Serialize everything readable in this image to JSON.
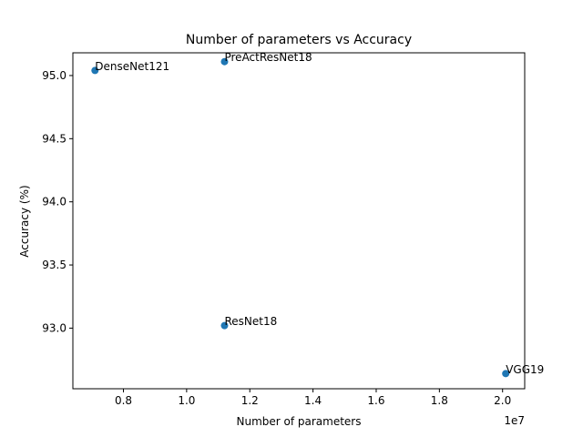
{
  "chart_data": {
    "type": "scatter",
    "title": "Number of parameters vs Accuracy",
    "xlabel": "Number of parameters",
    "ylabel": "Accuracy (%)",
    "x_offset_text": "1e7",
    "xlim": [
      0.64,
      2.07
    ],
    "ylim": [
      92.52,
      95.18
    ],
    "x_ticks": [
      0.8,
      1.0,
      1.2,
      1.4,
      1.6,
      1.8,
      2.0
    ],
    "x_tick_labels": [
      "0.8",
      "1.0",
      "1.2",
      "1.4",
      "1.6",
      "1.8",
      "2.0"
    ],
    "y_ticks": [
      93.0,
      93.5,
      94.0,
      94.5,
      95.0
    ],
    "y_tick_labels": [
      "93.0",
      "93.5",
      "94.0",
      "94.5",
      "95.0"
    ],
    "grid": false,
    "point_color": "#1f77b4",
    "points": [
      {
        "label": "DenseNet121",
        "x": 0.71,
        "y": 95.04
      },
      {
        "label": "PreActResNet18",
        "x": 1.12,
        "y": 95.11
      },
      {
        "label": "ResNet18",
        "x": 1.12,
        "y": 93.02
      },
      {
        "label": "VGG19",
        "x": 2.01,
        "y": 92.64
      }
    ]
  }
}
